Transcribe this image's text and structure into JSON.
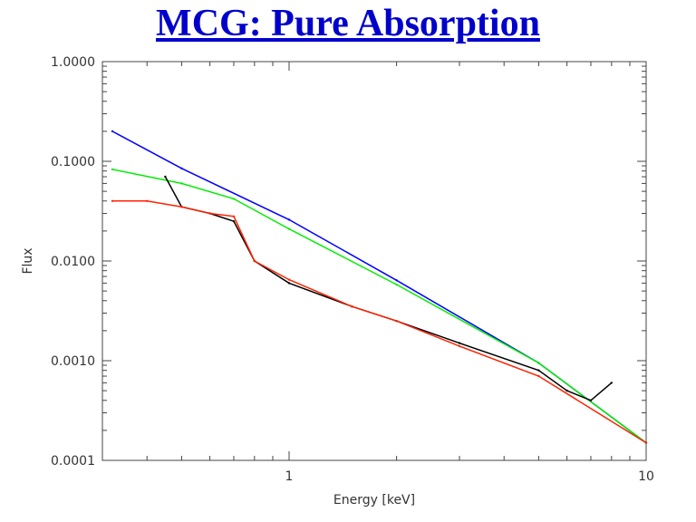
{
  "page_title": "MCG: Pure Absorption",
  "chart_data": {
    "type": "line",
    "title": "MCG: Pure Absorption",
    "xlabel": "Energy [keV]",
    "ylabel": "Flux",
    "x_scale": "log",
    "y_scale": "log",
    "xlim": [
      0.3,
      10
    ],
    "ylim": [
      0.0001,
      1.0
    ],
    "x_tick_labels": [
      {
        "value": 1,
        "label": "1"
      },
      {
        "value": 10,
        "label": "10"
      }
    ],
    "y_tick_labels": [
      {
        "value": 1.0,
        "label": "1.0000"
      },
      {
        "value": 0.1,
        "label": "0.1000"
      },
      {
        "value": 0.01,
        "label": "0.0100"
      },
      {
        "value": 0.001,
        "label": "0.0010"
      },
      {
        "value": 0.0001,
        "label": "0.0001"
      }
    ],
    "grid": false,
    "legend": "none",
    "series": [
      {
        "color": "#0000ff",
        "x": [
          0.32,
          0.5,
          1.0,
          2.0,
          5.0,
          10.0
        ],
        "y": [
          0.2,
          0.085,
          0.026,
          0.0064,
          0.00095,
          0.00015
        ]
      },
      {
        "color": "#00ee00",
        "x": [
          0.32,
          0.5,
          0.7,
          1.0,
          2.0,
          5.0,
          10.0
        ],
        "y": [
          0.083,
          0.06,
          0.042,
          0.021,
          0.0058,
          0.00095,
          0.00015
        ]
      },
      {
        "color": "#000000",
        "x": [
          0.45,
          0.5,
          0.6,
          0.7,
          0.8,
          1.0,
          1.5,
          2.0,
          3.0,
          5.0,
          6.0,
          7.0,
          8.0
        ],
        "y": [
          0.07,
          0.035,
          0.03,
          0.025,
          0.01,
          0.006,
          0.0035,
          0.0025,
          0.0015,
          0.0008,
          0.0005,
          0.0004,
          0.0006
        ]
      },
      {
        "color": "#ff2200",
        "x": [
          0.32,
          0.4,
          0.5,
          0.6,
          0.7,
          0.8,
          1.0,
          1.5,
          2.0,
          3.0,
          5.0,
          10.0
        ],
        "y": [
          0.04,
          0.04,
          0.035,
          0.03,
          0.028,
          0.01,
          0.0065,
          0.0035,
          0.0025,
          0.0014,
          0.0007,
          0.00015
        ]
      }
    ]
  }
}
